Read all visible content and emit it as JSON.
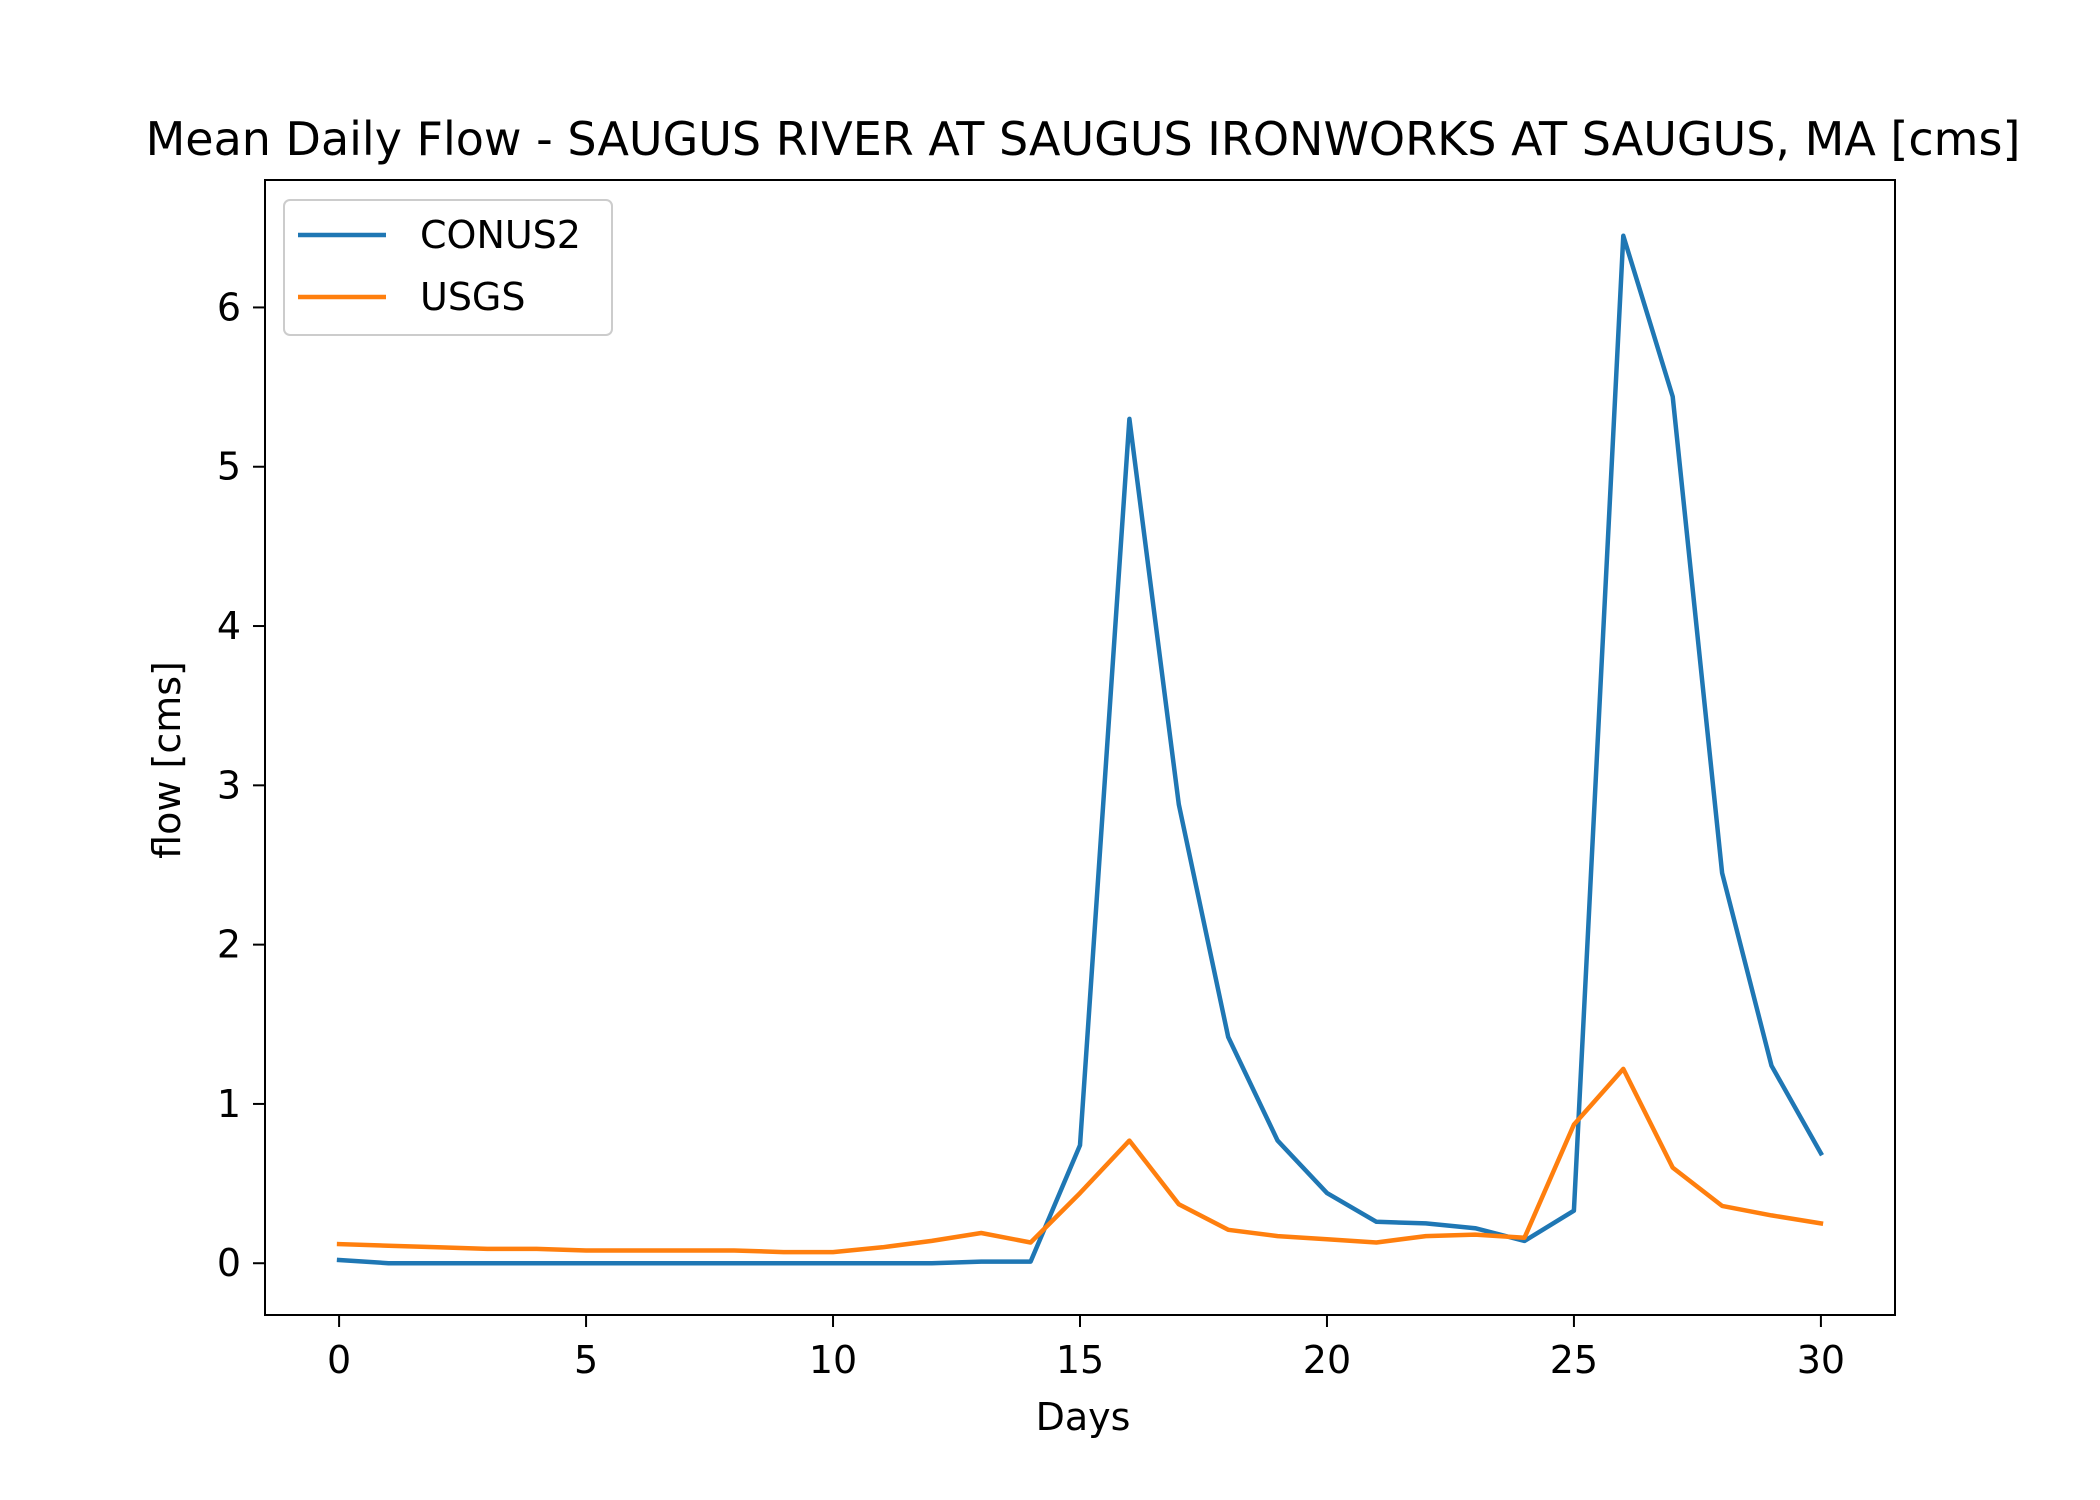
{
  "chart_data": {
    "type": "line",
    "title": "Mean Daily Flow - SAUGUS RIVER AT SAUGUS IRONWORKS AT SAUGUS, MA [cms]",
    "xlabel": "Days",
    "ylabel": "flow [cms]",
    "xlim": [
      -1.5,
      31.5
    ],
    "ylim": [
      -0.325,
      6.8
    ],
    "xticks": [
      0,
      5,
      10,
      15,
      20,
      25,
      30
    ],
    "yticks": [
      0,
      1,
      2,
      3,
      4,
      5,
      6
    ],
    "grid": false,
    "legend_position": "upper-left",
    "x": [
      0,
      1,
      2,
      3,
      4,
      5,
      6,
      7,
      8,
      9,
      10,
      11,
      12,
      13,
      14,
      15,
      16,
      17,
      18,
      19,
      20,
      21,
      22,
      23,
      24,
      25,
      26,
      27,
      28,
      29,
      30
    ],
    "series": [
      {
        "name": "CONUS2",
        "color": "#1f77b4",
        "values": [
          0.02,
          0.0,
          0.0,
          0.0,
          0.0,
          0.0,
          0.0,
          0.0,
          0.0,
          0.0,
          0.0,
          0.0,
          0.0,
          0.01,
          0.01,
          0.74,
          5.3,
          2.88,
          1.42,
          0.77,
          0.44,
          0.26,
          0.25,
          0.22,
          0.14,
          0.33,
          6.45,
          5.44,
          2.45,
          1.24,
          0.69
        ]
      },
      {
        "name": "USGS",
        "color": "#ff7f0e",
        "values": [
          0.12,
          0.11,
          0.1,
          0.09,
          0.09,
          0.08,
          0.08,
          0.08,
          0.08,
          0.07,
          0.07,
          0.1,
          0.14,
          0.19,
          0.13,
          0.44,
          0.77,
          0.37,
          0.21,
          0.17,
          0.15,
          0.13,
          0.17,
          0.18,
          0.16,
          0.87,
          1.22,
          0.6,
          0.36,
          0.3,
          0.25
        ]
      }
    ]
  }
}
